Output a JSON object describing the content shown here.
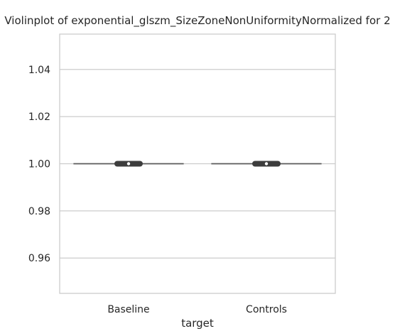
{
  "chart_data": {
    "type": "violin",
    "title": "Violinplot of exponential_glszm_SizeZoneNonUniformityNormalized for 2",
    "xlabel": "target",
    "ylabel": "",
    "categories": [
      "Baseline",
      "Controls"
    ],
    "ylim": [
      0.945,
      1.055
    ],
    "yticks": [
      0.96,
      0.98,
      1.0,
      1.02,
      1.04
    ],
    "ytick_labels": [
      "0.96",
      "0.98",
      "1.00",
      "1.02",
      "1.04"
    ],
    "grid": "horizontal",
    "series": [
      {
        "category": "Baseline",
        "value": 1.0,
        "inner_box": {
          "whisker_low": 1.0,
          "q1": 1.0,
          "median": 1.0,
          "q3": 1.0,
          "whisker_high": 1.0
        }
      },
      {
        "category": "Controls",
        "value": 1.0,
        "inner_box": {
          "whisker_low": 1.0,
          "q1": 1.0,
          "median": 1.0,
          "q3": 1.0,
          "whisker_high": 1.0
        }
      }
    ],
    "colors": {
      "grid": "#cccccc",
      "spine": "#cccccc",
      "violin_line": "#5a5a5a",
      "inner_box": "#3d3d3d",
      "text": "#262626"
    }
  }
}
